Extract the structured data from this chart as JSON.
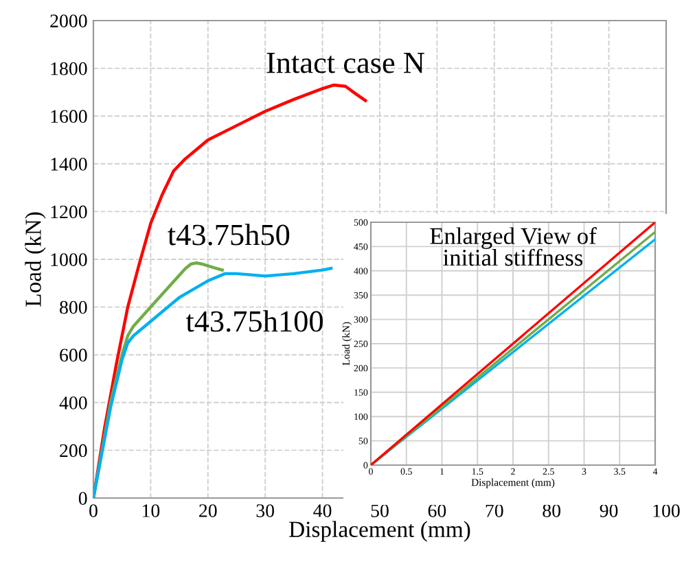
{
  "chart_data": [
    {
      "type": "line",
      "xlabel": "Displacement (mm)",
      "ylabel": "Load (kN)",
      "xlim": [
        0,
        100
      ],
      "ylim": [
        0,
        2000
      ],
      "xticks": [
        0,
        10,
        20,
        30,
        40,
        50,
        60,
        70,
        80,
        90,
        100
      ],
      "yticks": [
        0,
        200,
        400,
        600,
        800,
        1000,
        1200,
        1400,
        1600,
        1800,
        2000
      ],
      "grid": true,
      "line_style": "solid",
      "marker": "none",
      "series": [
        {
          "name": "Intact case N",
          "color": "#ff0000",
          "x": [
            0,
            2,
            4,
            6,
            8,
            10,
            12,
            14,
            16,
            18,
            20,
            25,
            30,
            35,
            40,
            42,
            44,
            46,
            47.5
          ],
          "values": [
            0,
            300,
            560,
            800,
            980,
            1150,
            1270,
            1370,
            1420,
            1460,
            1500,
            1560,
            1620,
            1670,
            1715,
            1730,
            1725,
            1690,
            1665
          ]
        },
        {
          "name": "t43.75h50",
          "color": "#70ad47",
          "x": [
            0,
            3,
            5,
            6,
            7,
            10,
            13,
            16,
            17,
            18,
            19,
            21,
            22.5
          ],
          "values": [
            0,
            400,
            600,
            680,
            720,
            800,
            880,
            960,
            980,
            985,
            980,
            965,
            955
          ]
        },
        {
          "name": "t43.75h100",
          "color": "#00b0f0",
          "x": [
            0,
            3,
            5,
            6,
            7,
            10,
            15,
            20,
            23,
            25,
            30,
            35,
            40,
            41.5
          ],
          "values": [
            0,
            380,
            580,
            650,
            680,
            740,
            840,
            910,
            940,
            940,
            930,
            940,
            955,
            962
          ]
        }
      ]
    },
    {
      "type": "line",
      "title": "Enlarged View of\ninitial stiffness",
      "xlabel": "Displacement (mm)",
      "ylabel": "Load (kN)",
      "xlim": [
        0,
        4
      ],
      "ylim": [
        0,
        500
      ],
      "xticks": [
        0,
        0.5,
        1,
        1.5,
        2,
        2.5,
        3,
        3.5,
        4
      ],
      "yticks": [
        0,
        50,
        100,
        150,
        200,
        250,
        300,
        350,
        400,
        450,
        500
      ],
      "grid": true,
      "line_style": "solid",
      "marker": "none",
      "series": [
        {
          "color": "#00b0f0",
          "x": [
            0,
            4
          ],
          "values": [
            0,
            465
          ]
        },
        {
          "color": "#70ad47",
          "x": [
            0,
            4
          ],
          "values": [
            0,
            480
          ]
        },
        {
          "color": "#ff0000",
          "x": [
            0,
            4
          ],
          "values": [
            0,
            500
          ]
        }
      ]
    }
  ]
}
